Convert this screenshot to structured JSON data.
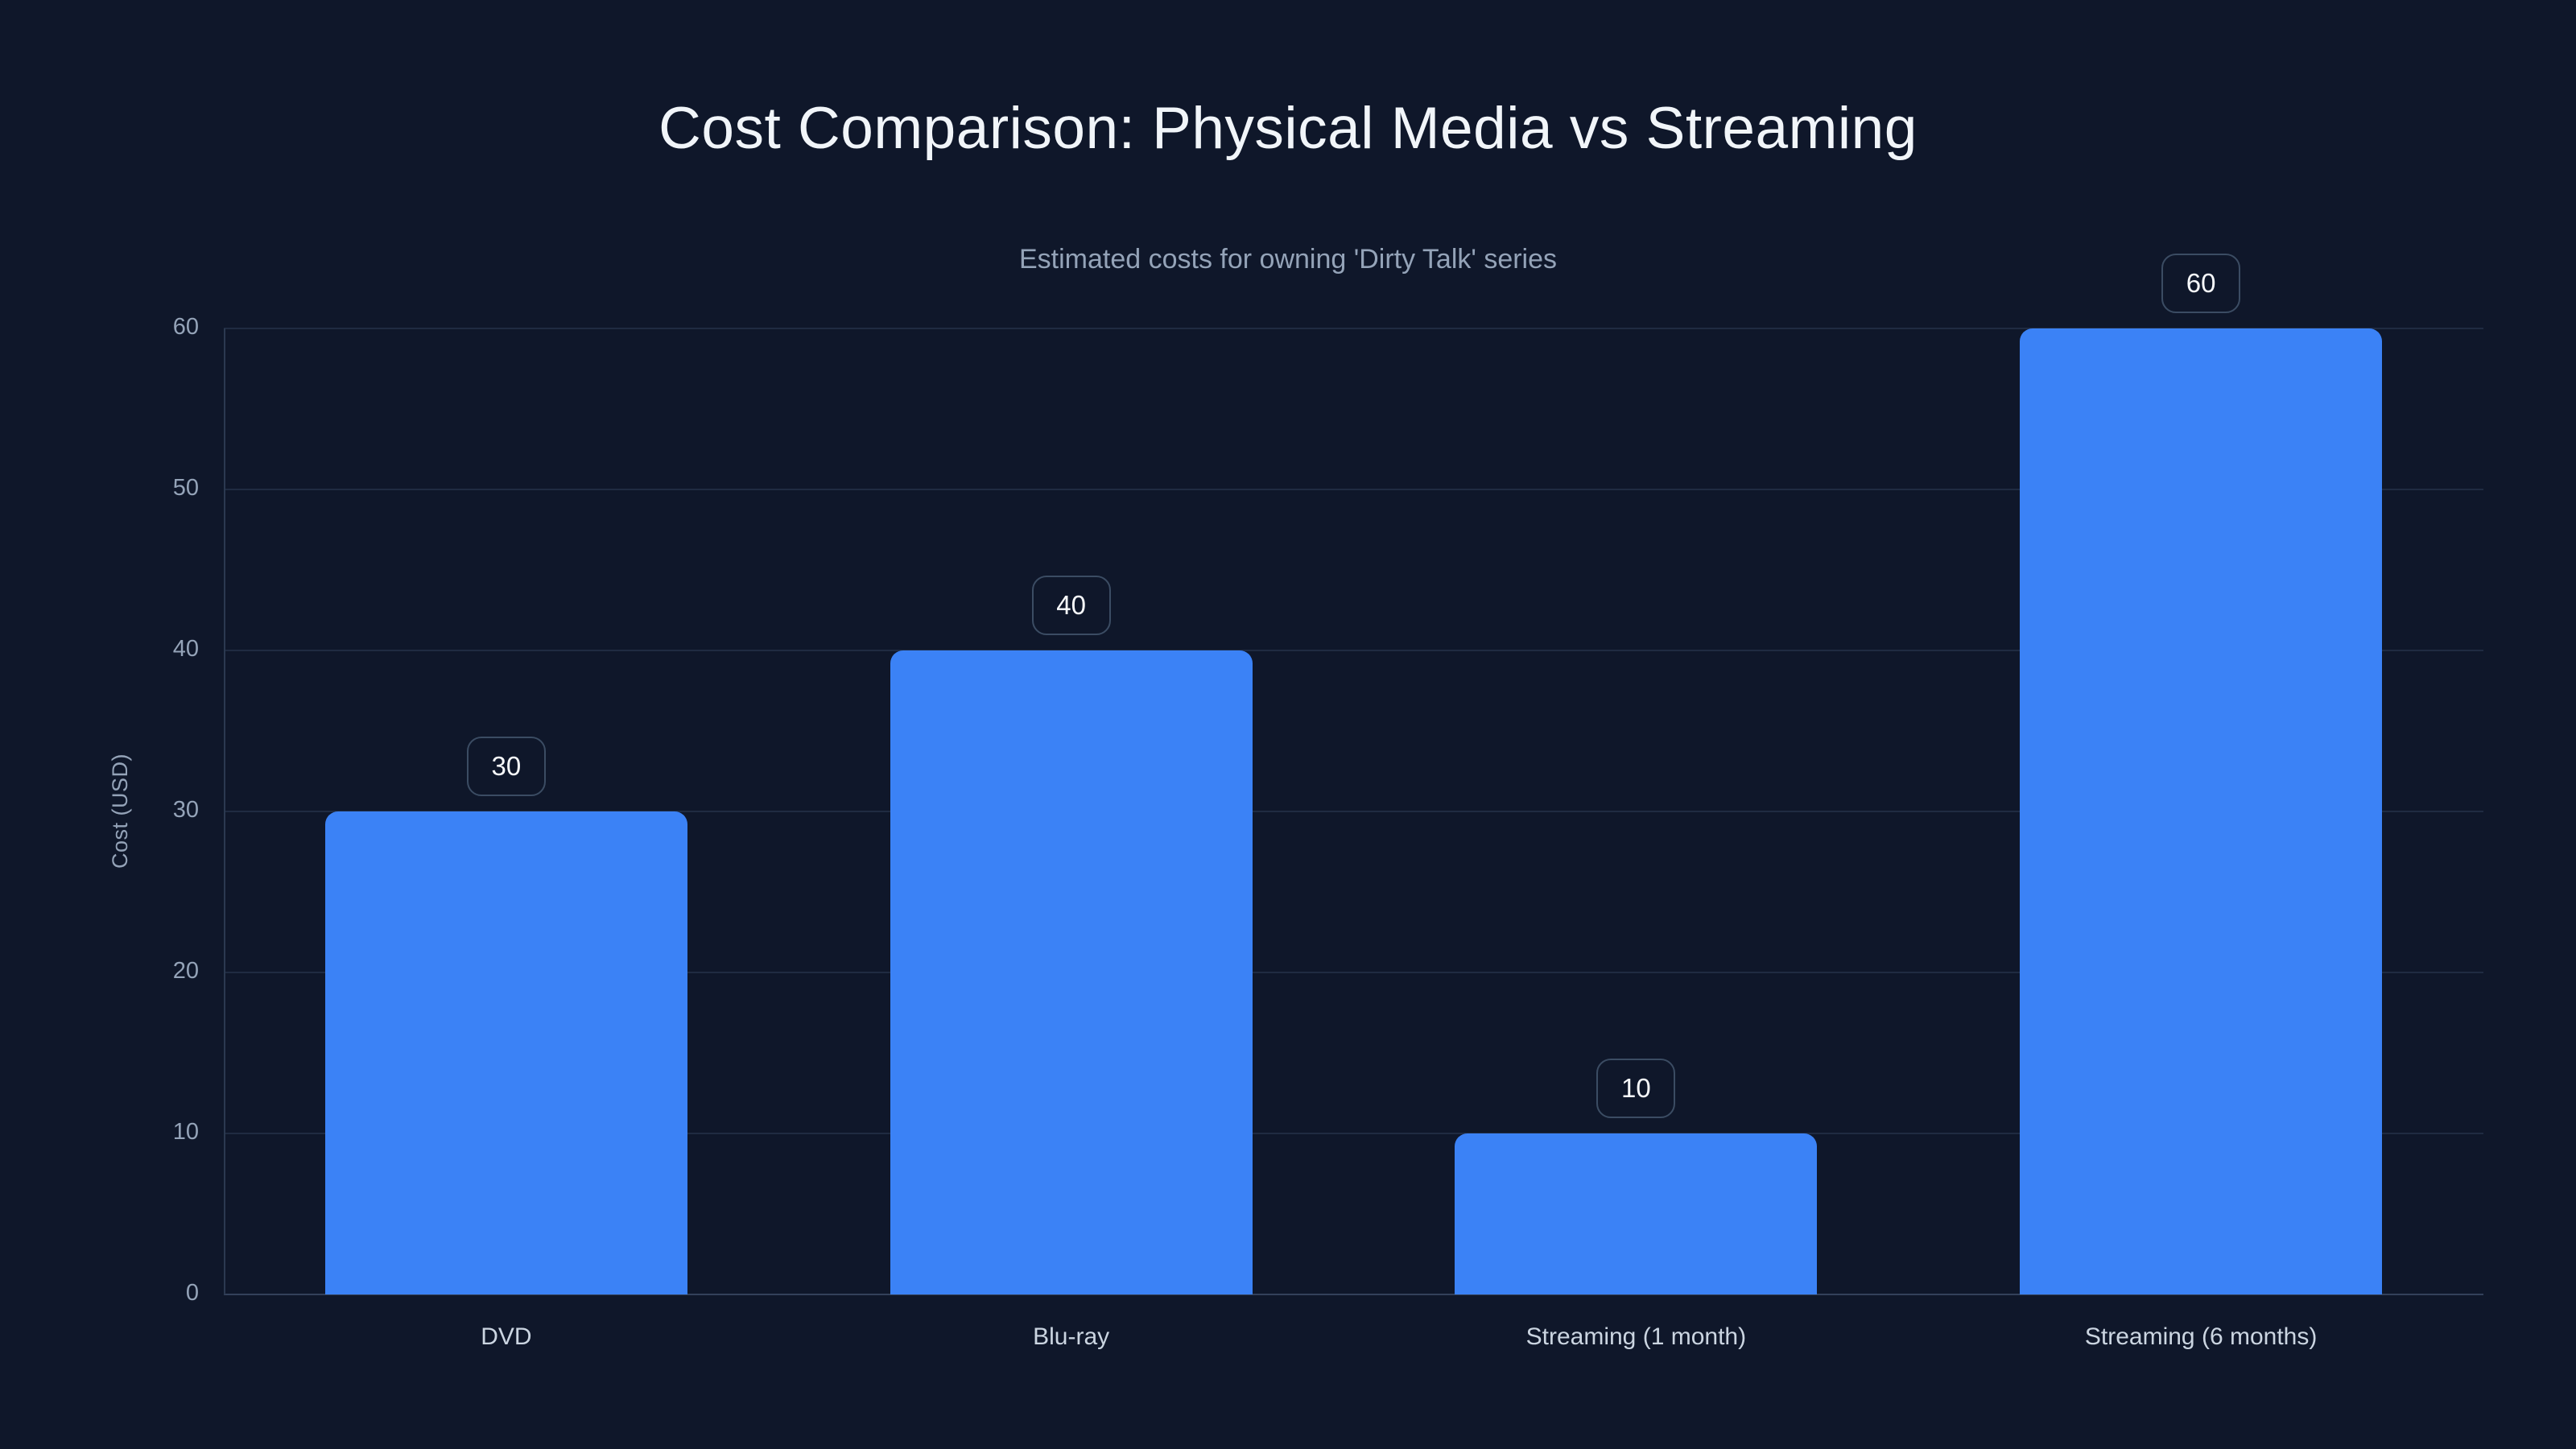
{
  "chart_data": {
    "type": "bar",
    "title": "Cost Comparison: Physical Media vs Streaming",
    "subtitle": "Estimated costs for owning 'Dirty Talk' series",
    "xlabel": "",
    "ylabel": "Cost (USD)",
    "categories": [
      "DVD",
      "Blu-ray",
      "Streaming (1 month)",
      "Streaming (6 months)"
    ],
    "values": [
      30,
      40,
      10,
      60
    ],
    "value_labels": [
      "30",
      "40",
      "10",
      "60"
    ],
    "yticks": [
      "0",
      "10",
      "20",
      "30",
      "40",
      "50",
      "60"
    ],
    "ylim": [
      0,
      60
    ],
    "grid": true,
    "legend": false,
    "colors": {
      "background": "#0f172a",
      "bar": "#3b82f6",
      "grid": "#1f2b42",
      "zero_line": "#33415a",
      "axis_line": "#2b3950",
      "tick_text": "#94a3b8",
      "xtick_text": "#cbd5e1",
      "title_text": "#f1f5f9",
      "subtitle_text": "#94a3b8",
      "chip_border": "#3b4c63",
      "chip_text": "#f8fafc"
    }
  }
}
